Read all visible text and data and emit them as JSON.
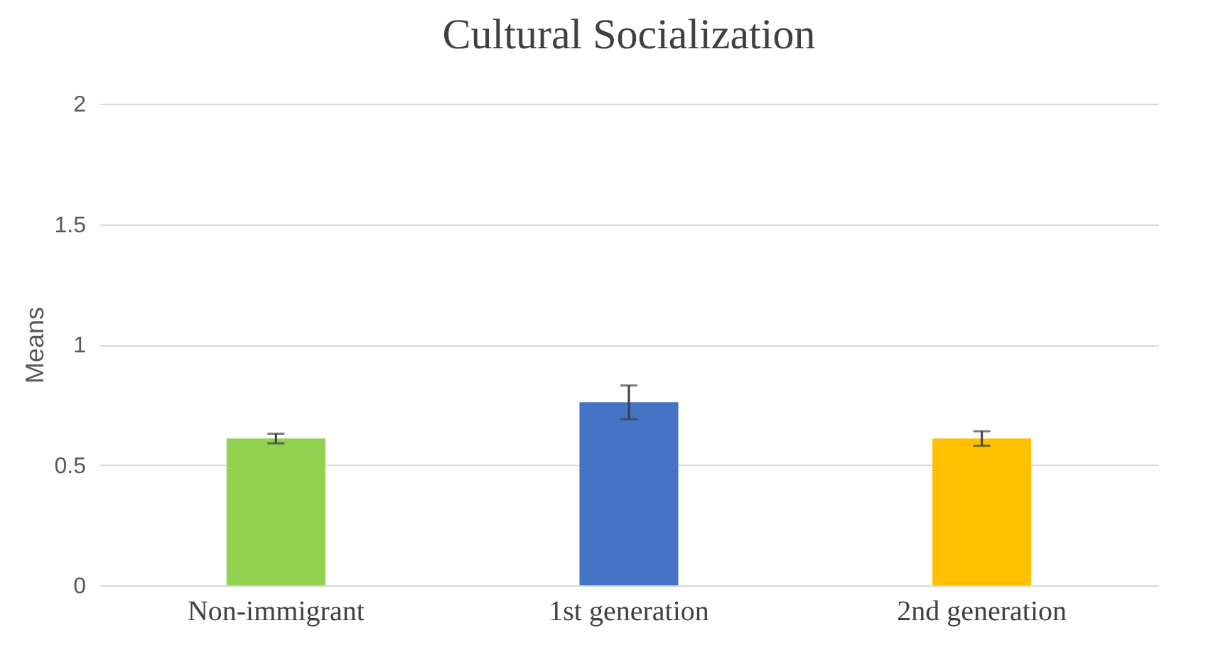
{
  "chart_data": {
    "type": "bar",
    "title": "Cultural Socialization",
    "ylabel": "Means",
    "categories": [
      "Non-immigrant",
      "1st generation",
      "2nd generation"
    ],
    "values": [
      0.61,
      0.76,
      0.61
    ],
    "colors": [
      "#92d050",
      "#4472c4",
      "#ffc000"
    ],
    "errors": [
      0.02,
      0.07,
      0.03
    ],
    "ylim": [
      0,
      2
    ],
    "yticks": [
      0,
      0.5,
      1,
      1.5,
      2
    ],
    "grid": "y"
  }
}
